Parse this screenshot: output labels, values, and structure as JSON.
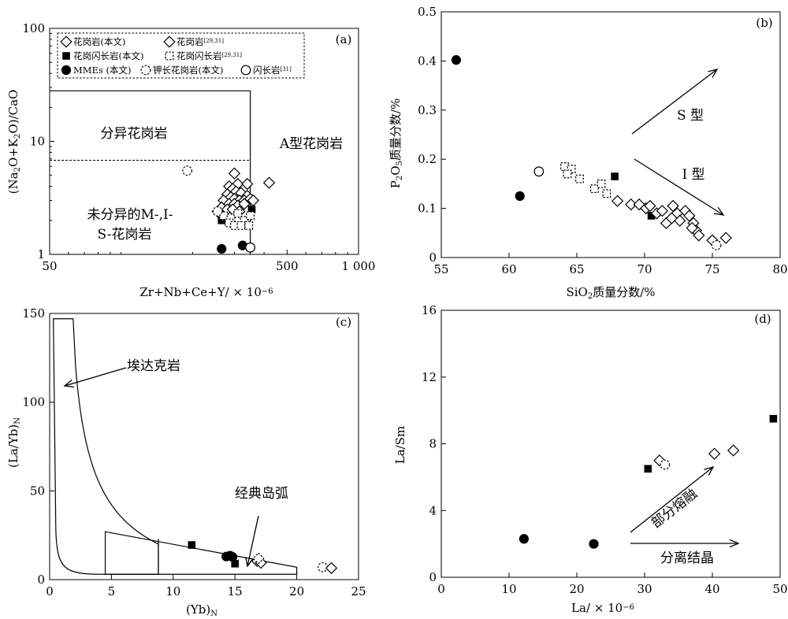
{
  "chart_data": [
    {
      "panel": "(a)",
      "type": "scatter",
      "xscale": "log",
      "yscale": "log",
      "xlim": [
        50,
        1000
      ],
      "ylim": [
        1,
        100
      ],
      "xlabel": "Zr+Nb+Ce+Y/×10⁻⁶",
      "ylabel": "(Na₂O+K₂O)/CaO",
      "xticks": [
        {
          "v": 50,
          "t": "50"
        },
        {
          "v": 500,
          "t": "500"
        },
        {
          "v": 1000,
          "t": "1 000"
        }
      ],
      "yticks": [
        {
          "v": 1,
          "t": "1"
        },
        {
          "v": 10,
          "t": "10"
        },
        {
          "v": 100,
          "t": "100"
        }
      ],
      "legend": [
        {
          "symbol": "diamond-open",
          "label": "花岗岩(本文)"
        },
        {
          "symbol": "diamond-open",
          "label": "花岗岩",
          "ref": "[29,31]"
        },
        {
          "symbol": "square-filled",
          "label": "花岗闪长岩(本文)"
        },
        {
          "symbol": "square-dashed",
          "label": "花岗闪长岩",
          "ref": "[29,31]"
        },
        {
          "symbol": "circle-filled",
          "label": "MMEs (本文)"
        },
        {
          "symbol": "circle-dashed",
          "label": "钾长花岗岩(本文)"
        },
        {
          "symbol": "circle-open",
          "label": "闪长岩",
          "ref": "[31]"
        }
      ],
      "field_labels": [
        "分异花岗岩",
        "A型花岗岩",
        "未分异的M-,I-",
        "S-花岗岩"
      ],
      "series": [
        {
          "symbol": "diamond-open",
          "points": [
            [
              300,
              5.2
            ],
            [
              285,
              4.0
            ],
            [
              310,
              4.2
            ],
            [
              340,
              4.2
            ],
            [
              420,
              4.3
            ],
            [
              295,
              3.8
            ],
            [
              305,
              3.6
            ],
            [
              320,
              3.5
            ],
            [
              340,
              3.3
            ],
            [
              280,
              3.4
            ],
            [
              290,
              3.2
            ],
            [
              300,
              3.1
            ],
            [
              315,
              3.0
            ],
            [
              330,
              3.0
            ],
            [
              350,
              3.1
            ],
            [
              270,
              3.0
            ],
            [
              285,
              2.8
            ],
            [
              300,
              2.8
            ],
            [
              310,
              2.7
            ],
            [
              330,
              2.8
            ],
            [
              360,
              3.0
            ],
            [
              265,
              2.6
            ],
            [
              280,
              2.5
            ],
            [
              295,
              2.5
            ],
            [
              315,
              2.4
            ],
            [
              255,
              2.4
            ]
          ]
        },
        {
          "symbol": "square-filled",
          "points": [
            [
              355,
              2.5
            ],
            [
              265,
              2.0
            ]
          ]
        },
        {
          "symbol": "square-dashed",
          "points": [
            [
              270,
              2.2
            ],
            [
              290,
              2.1
            ],
            [
              310,
              2.3
            ],
            [
              330,
              2.0
            ],
            [
              285,
              1.9
            ],
            [
              300,
              1.8
            ],
            [
              320,
              1.8
            ],
            [
              345,
              1.8
            ],
            [
              350,
              2.2
            ]
          ]
        },
        {
          "symbol": "circle-filled",
          "points": [
            [
              265,
              1.12
            ],
            [
              325,
              1.2
            ]
          ]
        },
        {
          "symbol": "circle-dashed",
          "points": [
            [
              190,
              5.5
            ],
            [
              255,
              2.4
            ]
          ]
        },
        {
          "symbol": "circle-open",
          "points": [
            [
              350,
              1.15
            ]
          ]
        }
      ]
    },
    {
      "panel": "(b)",
      "type": "scatter",
      "xlim": [
        55,
        80
      ],
      "ylim": [
        0,
        0.5
      ],
      "xlabel": "SiO₂质量分数/%",
      "ylabel": "P₂O₅质量分数/%",
      "xticks": [
        55,
        60,
        65,
        70,
        75,
        80
      ],
      "yticks": [
        0,
        0.1,
        0.2,
        0.3,
        0.4,
        0.5
      ],
      "annotations": [
        "S 型",
        "I 型"
      ],
      "series": [
        {
          "symbol": "circle-filled",
          "points": [
            [
              56.1,
              0.402
            ],
            [
              60.8,
              0.125
            ]
          ]
        },
        {
          "symbol": "circle-open",
          "points": [
            [
              62.2,
              0.175
            ]
          ]
        },
        {
          "symbol": "square-dashed",
          "points": [
            [
              64.1,
              0.185
            ],
            [
              64.6,
              0.18
            ],
            [
              64.3,
              0.17
            ],
            [
              65.2,
              0.16
            ],
            [
              66.3,
              0.14
            ],
            [
              66.8,
              0.15
            ],
            [
              67.2,
              0.13
            ]
          ]
        },
        {
          "symbol": "square-filled",
          "points": [
            [
              67.8,
              0.165
            ],
            [
              70.5,
              0.085
            ]
          ]
        },
        {
          "symbol": "diamond-open",
          "points": [
            [
              68,
              0.115
            ],
            [
              69,
              0.108
            ],
            [
              69.6,
              0.108
            ],
            [
              70.1,
              0.1
            ],
            [
              70.4,
              0.105
            ],
            [
              70.9,
              0.09
            ],
            [
              71.3,
              0.095
            ],
            [
              71.6,
              0.07
            ],
            [
              72.1,
              0.105
            ],
            [
              72.4,
              0.09
            ],
            [
              72.6,
              0.075
            ],
            [
              73.0,
              0.095
            ],
            [
              73.3,
              0.085
            ],
            [
              73.6,
              0.07
            ],
            [
              73.8,
              0.055
            ],
            [
              74.0,
              0.045
            ],
            [
              72.0,
              0.08
            ],
            [
              73.5,
              0.06
            ],
            [
              75,
              0.035
            ],
            [
              76,
              0.04
            ]
          ]
        },
        {
          "symbol": "circle-dashed",
          "points": [
            [
              75.3,
              0.025
            ]
          ]
        }
      ]
    },
    {
      "panel": "(c)",
      "type": "scatter",
      "xlim": [
        0,
        25
      ],
      "ylim": [
        0,
        150
      ],
      "xlabel": "(Yb)N",
      "ylabel": "(La/Yb)N",
      "xticks": [
        0,
        5,
        10,
        15,
        20,
        25
      ],
      "yticks": [
        0,
        50,
        100,
        150
      ],
      "annotations": [
        "埃达克岩",
        "经典岛弧"
      ],
      "series": [
        {
          "symbol": "square-filled",
          "points": [
            [
              11.5,
              19.5
            ],
            [
              15,
              9
            ]
          ]
        },
        {
          "symbol": "circle-filled",
          "points": [
            [
              14.3,
              13
            ],
            [
              14.6,
              13.5
            ],
            [
              14.8,
              12.8
            ]
          ]
        },
        {
          "symbol": "diamond-open",
          "points": [
            [
              16.8,
              10.5
            ],
            [
              17.1,
              9.5
            ]
          ]
        },
        {
          "symbol": "diamond-dashed",
          "points": [
            [
              16.9,
              12
            ]
          ]
        },
        {
          "symbol": "circle-dashed",
          "points": [
            [
              22.1,
              7
            ]
          ]
        },
        {
          "symbol": "diamond-open",
          "points": [
            [
              22.8,
              6.5
            ]
          ]
        }
      ]
    },
    {
      "panel": "(d)",
      "type": "scatter",
      "xlim": [
        0,
        50
      ],
      "ylim": [
        0,
        16
      ],
      "xlabel": "La/×10⁻⁶",
      "ylabel": "La/Sm",
      "xticks": [
        0,
        10,
        20,
        30,
        40,
        50
      ],
      "yticks": [
        0,
        4,
        8,
        12,
        16
      ],
      "annotations": [
        "部分熔融",
        "分离结晶"
      ],
      "series": [
        {
          "symbol": "circle-filled",
          "points": [
            [
              12.2,
              2.3
            ],
            [
              22.5,
              2.0
            ]
          ]
        },
        {
          "symbol": "square-filled",
          "points": [
            [
              30.5,
              6.5
            ],
            [
              49,
              9.5
            ]
          ]
        },
        {
          "symbol": "diamond-open",
          "points": [
            [
              32.2,
              7.0
            ],
            [
              40.3,
              7.4
            ],
            [
              43.1,
              7.6
            ]
          ]
        },
        {
          "symbol": "circle-dashed",
          "points": [
            [
              33,
              6.75
            ]
          ]
        }
      ]
    }
  ]
}
